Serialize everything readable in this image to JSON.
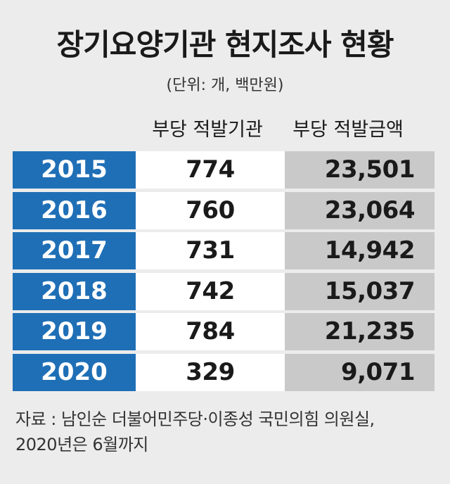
{
  "title": "장기요양기관 현지조사 현황",
  "unit": "(단위:  개, 백만원)",
  "chart_data": {
    "type": "table",
    "columns": [
      "부당 적발기관",
      "부당 적발금액"
    ],
    "rows": [
      {
        "year": "2015",
        "count": "774",
        "amount": "23,501"
      },
      {
        "year": "2016",
        "count": "760",
        "amount": "23,064"
      },
      {
        "year": "2017",
        "count": "731",
        "amount": "14,942"
      },
      {
        "year": "2018",
        "count": "742",
        "amount": "15,037"
      },
      {
        "year": "2019",
        "count": "784",
        "amount": "21,235"
      },
      {
        "year": "2020",
        "count": "329",
        "amount": "9,071"
      }
    ]
  },
  "source": {
    "line1": "자료 : 남인순 더불어민주당·이종성 국민의힘 의원실,",
    "line2": "2020년은 6월까지"
  },
  "colors": {
    "year_bg": "#1f6fb6",
    "count_bg": "#ffffff",
    "amount_bg": "#c9c9c9",
    "page_bg": "#ececec"
  }
}
